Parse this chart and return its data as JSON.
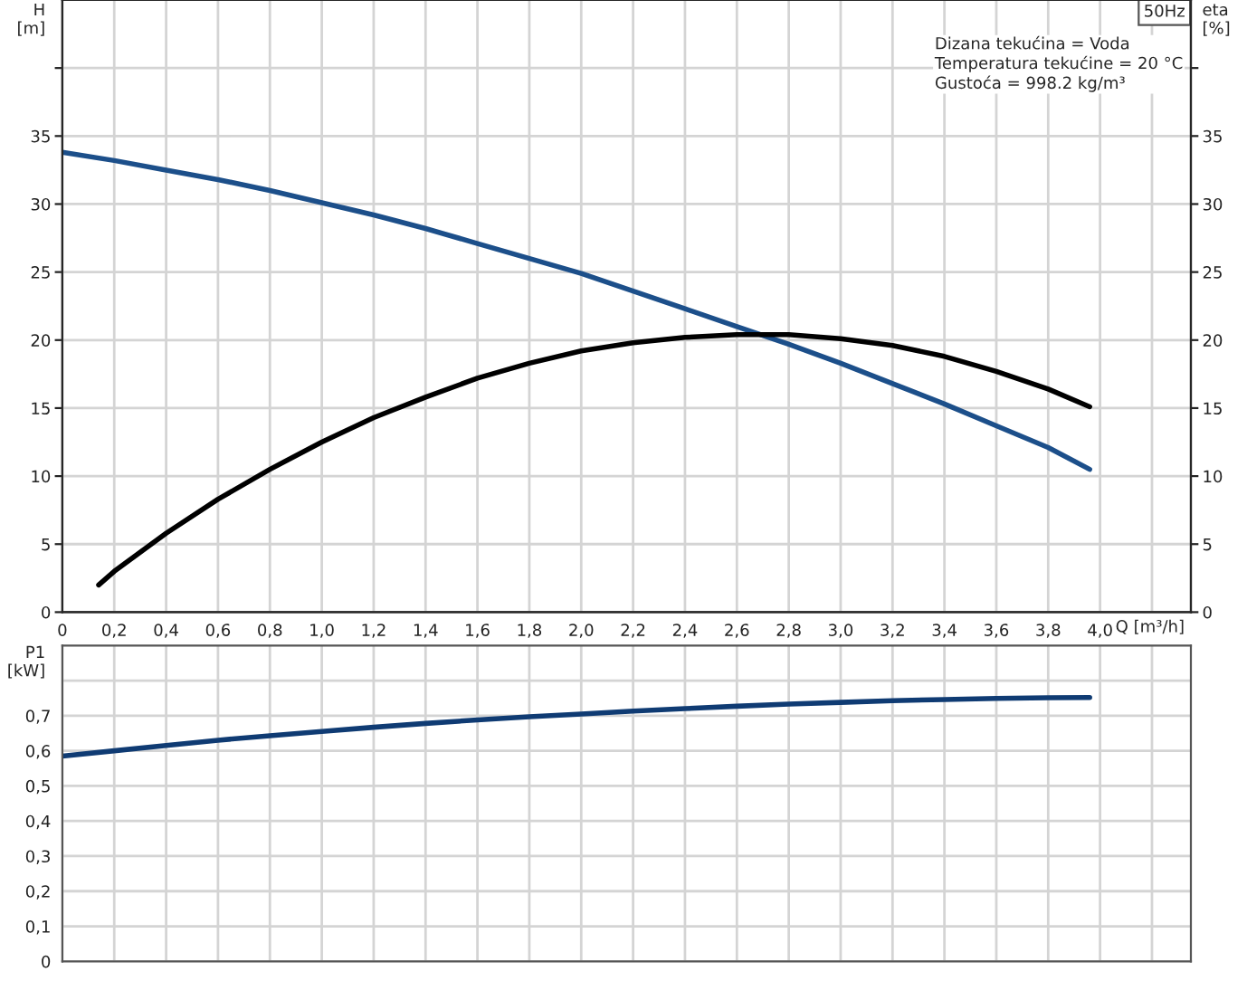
{
  "chart_data": [
    {
      "type": "line",
      "ylabel": "H\n[m]",
      "y2label": "eta\n[%]",
      "xlabel": "Q [m³/h]",
      "annotations": [
        "50Hz",
        "Dizana tekućina = Voda\nTemperatura tekućine = 20 °C\nGustoća = 998.2 kg/m³"
      ],
      "series": [
        {
          "color": "#1c4f8a",
          "x": [
            0,
            0.2,
            0.4,
            0.6,
            0.8,
            1.0,
            1.2,
            1.4,
            1.6,
            1.8,
            2.0,
            2.2,
            2.4,
            2.6,
            2.8,
            3.0,
            3.2,
            3.4,
            3.6,
            3.8,
            3.96
          ],
          "values": [
            33.8,
            33.2,
            32.5,
            31.8,
            31.0,
            30.1,
            29.2,
            28.2,
            27.1,
            26.0,
            24.9,
            23.6,
            22.3,
            21.0,
            19.7,
            18.3,
            16.8,
            15.3,
            13.7,
            12.1,
            10.5
          ]
        },
        {
          "color": "#000000",
          "axis": "y2",
          "x": [
            0.14,
            0.2,
            0.4,
            0.6,
            0.8,
            1.0,
            1.2,
            1.4,
            1.6,
            1.8,
            2.0,
            2.2,
            2.4,
            2.6,
            2.8,
            3.0,
            3.2,
            3.4,
            3.6,
            3.8,
            3.96
          ],
          "values": [
            2.0,
            3.0,
            5.8,
            8.3,
            10.5,
            12.5,
            14.3,
            15.8,
            17.2,
            18.3,
            19.2,
            19.8,
            20.2,
            20.4,
            20.4,
            20.1,
            19.6,
            18.8,
            17.7,
            16.4,
            15.1
          ]
        }
      ],
      "xlim": [
        0,
        4.35
      ],
      "xticks": [
        0,
        {
          "value": 0.2,
          "label": "0,2"
        },
        {
          "value": 0.4,
          "label": "0,4"
        },
        {
          "value": 0.6,
          "label": "0,6"
        },
        {
          "value": 0.8,
          "label": "0,8"
        },
        {
          "value": 1.0,
          "label": "1,0"
        },
        {
          "value": 1.2,
          "label": "1,2"
        },
        {
          "value": 1.4,
          "label": "1,4"
        },
        {
          "value": 1.6,
          "label": "1,6"
        },
        {
          "value": 1.8,
          "label": "1,8"
        },
        {
          "value": 2.0,
          "label": "2,0"
        },
        {
          "value": 2.2,
          "label": "2,2"
        },
        {
          "value": 2.4,
          "label": "2,4"
        },
        {
          "value": 2.6,
          "label": "2,6"
        },
        {
          "value": 2.8,
          "label": "2,8"
        },
        {
          "value": 3.0,
          "label": "3,0"
        },
        {
          "value": 3.2,
          "label": "3,2"
        },
        {
          "value": 3.4,
          "label": "3,4"
        },
        {
          "value": 3.6,
          "label": "3,6"
        },
        {
          "value": 3.8,
          "label": "3,8"
        },
        {
          "value": 4.0,
          "label": "4,0"
        },
        {
          "value": 4.2,
          "label": null
        }
      ],
      "ylim": [
        0,
        45
      ],
      "yticks": [
        0,
        5,
        10,
        15,
        20,
        25,
        30,
        35,
        {
          "value": 40,
          "label": null
        }
      ],
      "y2lim": [
        0,
        45
      ],
      "y2ticks": [
        0,
        5,
        10,
        15,
        20,
        25,
        30,
        35,
        {
          "value": 40,
          "label": null
        }
      ],
      "grid": true,
      "marker": "none",
      "line_style": "solid"
    },
    {
      "type": "line",
      "ylabel": "P1\n[kW]",
      "series": [
        {
          "color": "#0f3b73",
          "x": [
            0,
            0.2,
            0.4,
            0.6,
            0.8,
            1.0,
            1.2,
            1.4,
            1.6,
            1.8,
            2.0,
            2.2,
            2.4,
            2.6,
            2.8,
            3.0,
            3.2,
            3.4,
            3.6,
            3.8,
            3.96
          ],
          "values": [
            0.585,
            0.6,
            0.615,
            0.63,
            0.643,
            0.655,
            0.667,
            0.678,
            0.688,
            0.697,
            0.705,
            0.713,
            0.72,
            0.727,
            0.733,
            0.738,
            0.743,
            0.746,
            0.749,
            0.751,
            0.752
          ]
        }
      ],
      "xlim": [
        0,
        4.35
      ],
      "xticks": [
        0,
        0.2,
        0.4,
        0.6,
        0.8,
        1.0,
        1.2,
        1.4,
        1.6,
        1.8,
        2.0,
        2.2,
        2.4,
        2.6,
        2.8,
        3.0,
        3.2,
        3.4,
        3.6,
        3.8,
        4.0,
        4.2
      ],
      "ylim": [
        0,
        0.9
      ],
      "yticks": [
        0,
        {
          "value": 0.1,
          "label": "0,1"
        },
        {
          "value": 0.2,
          "label": "0,2"
        },
        {
          "value": 0.3,
          "label": "0,3"
        },
        {
          "value": 0.4,
          "label": "0,4"
        },
        {
          "value": 0.5,
          "label": "0,5"
        },
        {
          "value": 0.6,
          "label": "0,6"
        },
        {
          "value": 0.7,
          "label": "0,7"
        },
        {
          "value": 0.8,
          "label": null
        }
      ],
      "tick_labels": "y",
      "grid": true,
      "marker": "none",
      "line_style": "solid"
    }
  ]
}
